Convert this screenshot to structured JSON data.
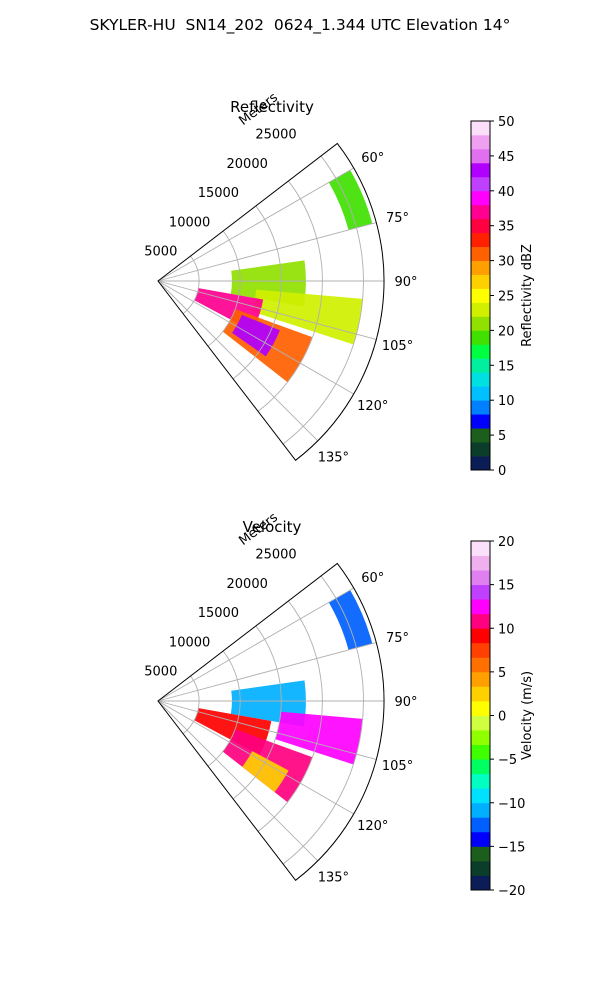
{
  "figure": {
    "title": "SKYLER-HU  SN14_202  0624_1.344 UTC Elevation 14°"
  },
  "chart_data": [
    {
      "type": "polar-sector",
      "title": "Reflectivity",
      "radial_label": "Meters",
      "radial_ticks": [
        "5000",
        "10000",
        "15000",
        "20000",
        "25000"
      ],
      "radial_ticks_values": [
        5000,
        10000,
        15000,
        20000,
        25000
      ],
      "r_max": 27500,
      "theta_ticks": [
        "60°",
        "75°",
        "90°",
        "105°",
        "120°",
        "135°"
      ],
      "theta_ticks_values": [
        60,
        75,
        90,
        105,
        120,
        135
      ],
      "theta_range": [
        52.5,
        142.5
      ],
      "theta_zero": "north",
      "theta_direction": "clockwise",
      "grid": true,
      "colorbar": {
        "label": "Reflectivity dBZ",
        "range": [
          0,
          50
        ],
        "ticks": [
          "0",
          "5",
          "10",
          "15",
          "20",
          "25",
          "30",
          "35",
          "40",
          "45",
          "50"
        ],
        "colors": [
          "#0b1d56",
          "#0a3d2a",
          "#1c5e1c",
          "#0000ff",
          "#0080ff",
          "#00c0ff",
          "#00e0e0",
          "#00f0a0",
          "#00ff40",
          "#40e000",
          "#90e000",
          "#d0f000",
          "#ffff00",
          "#ffd000",
          "#ffa000",
          "#ff6000",
          "#ff2000",
          "#ff0040",
          "#ff0090",
          "#ff00ff",
          "#c040ff",
          "#b000ff",
          "#e070f0",
          "#f0a0f0",
          "#fbe0fb"
        ]
      },
      "echo_summary": [
        {
          "azimuth_range": [
            60,
            75
          ],
          "range_m": [
            24000,
            27000
          ],
          "dbz": 18
        },
        {
          "azimuth_range": [
            82,
            100
          ],
          "range_m": [
            9000,
            18000
          ],
          "dbz": 20
        },
        {
          "azimuth_range": [
            95,
            108
          ],
          "range_m": [
            12000,
            25000
          ],
          "dbz": 22
        },
        {
          "azimuth_range": [
            100,
            118
          ],
          "range_m": [
            5000,
            13000
          ],
          "dbz": 36
        },
        {
          "azimuth_range": [
            110,
            128
          ],
          "range_m": [
            10000,
            20000
          ],
          "dbz": 30
        },
        {
          "azimuth_range": [
            112,
            125
          ],
          "range_m": [
            11000,
            16000
          ],
          "dbz": 42
        }
      ]
    },
    {
      "type": "polar-sector",
      "title": "Velocity",
      "radial_label": "Meters",
      "radial_ticks": [
        "5000",
        "10000",
        "15000",
        "20000",
        "25000"
      ],
      "radial_ticks_values": [
        5000,
        10000,
        15000,
        20000,
        25000
      ],
      "r_max": 27500,
      "theta_ticks": [
        "60°",
        "75°",
        "90°",
        "105°",
        "120°",
        "135°"
      ],
      "theta_ticks_values": [
        60,
        75,
        90,
        105,
        120,
        135
      ],
      "theta_range": [
        52.5,
        142.5
      ],
      "theta_zero": "north",
      "theta_direction": "clockwise",
      "grid": true,
      "colorbar": {
        "label": "Velocity (m/s)",
        "range": [
          -20,
          20
        ],
        "ticks": [
          "−20",
          "−15",
          "−10",
          "−5",
          "0",
          "5",
          "10",
          "15",
          "20"
        ],
        "colors": [
          "#0b1d56",
          "#0a3d2a",
          "#1c5e1c",
          "#0000ff",
          "#0060ff",
          "#00b0ff",
          "#00e0ff",
          "#00ffc0",
          "#00ff60",
          "#40ff00",
          "#90ff00",
          "#d0ff40",
          "#ffff00",
          "#ffd000",
          "#ffa000",
          "#ff7000",
          "#ff4000",
          "#ff0000",
          "#ff0080",
          "#ff00ff",
          "#c040ff",
          "#e080f0",
          "#f0b0f0",
          "#fbe0fb"
        ]
      },
      "echo_summary": [
        {
          "azimuth_range": [
            60,
            75
          ],
          "range_m": [
            24000,
            27000
          ],
          "velocity": -12
        },
        {
          "azimuth_range": [
            82,
            100
          ],
          "range_m": [
            9000,
            18000
          ],
          "velocity": -11
        },
        {
          "azimuth_range": [
            95,
            108
          ],
          "range_m": [
            15000,
            25000
          ],
          "velocity": 13
        },
        {
          "azimuth_range": [
            100,
            118
          ],
          "range_m": [
            5000,
            14000
          ],
          "velocity": 9
        },
        {
          "azimuth_range": [
            110,
            128
          ],
          "range_m": [
            10000,
            20000
          ],
          "velocity": 11
        },
        {
          "azimuth_range": [
            118,
            128
          ],
          "range_m": [
            13000,
            18000
          ],
          "velocity": 2
        }
      ]
    }
  ]
}
